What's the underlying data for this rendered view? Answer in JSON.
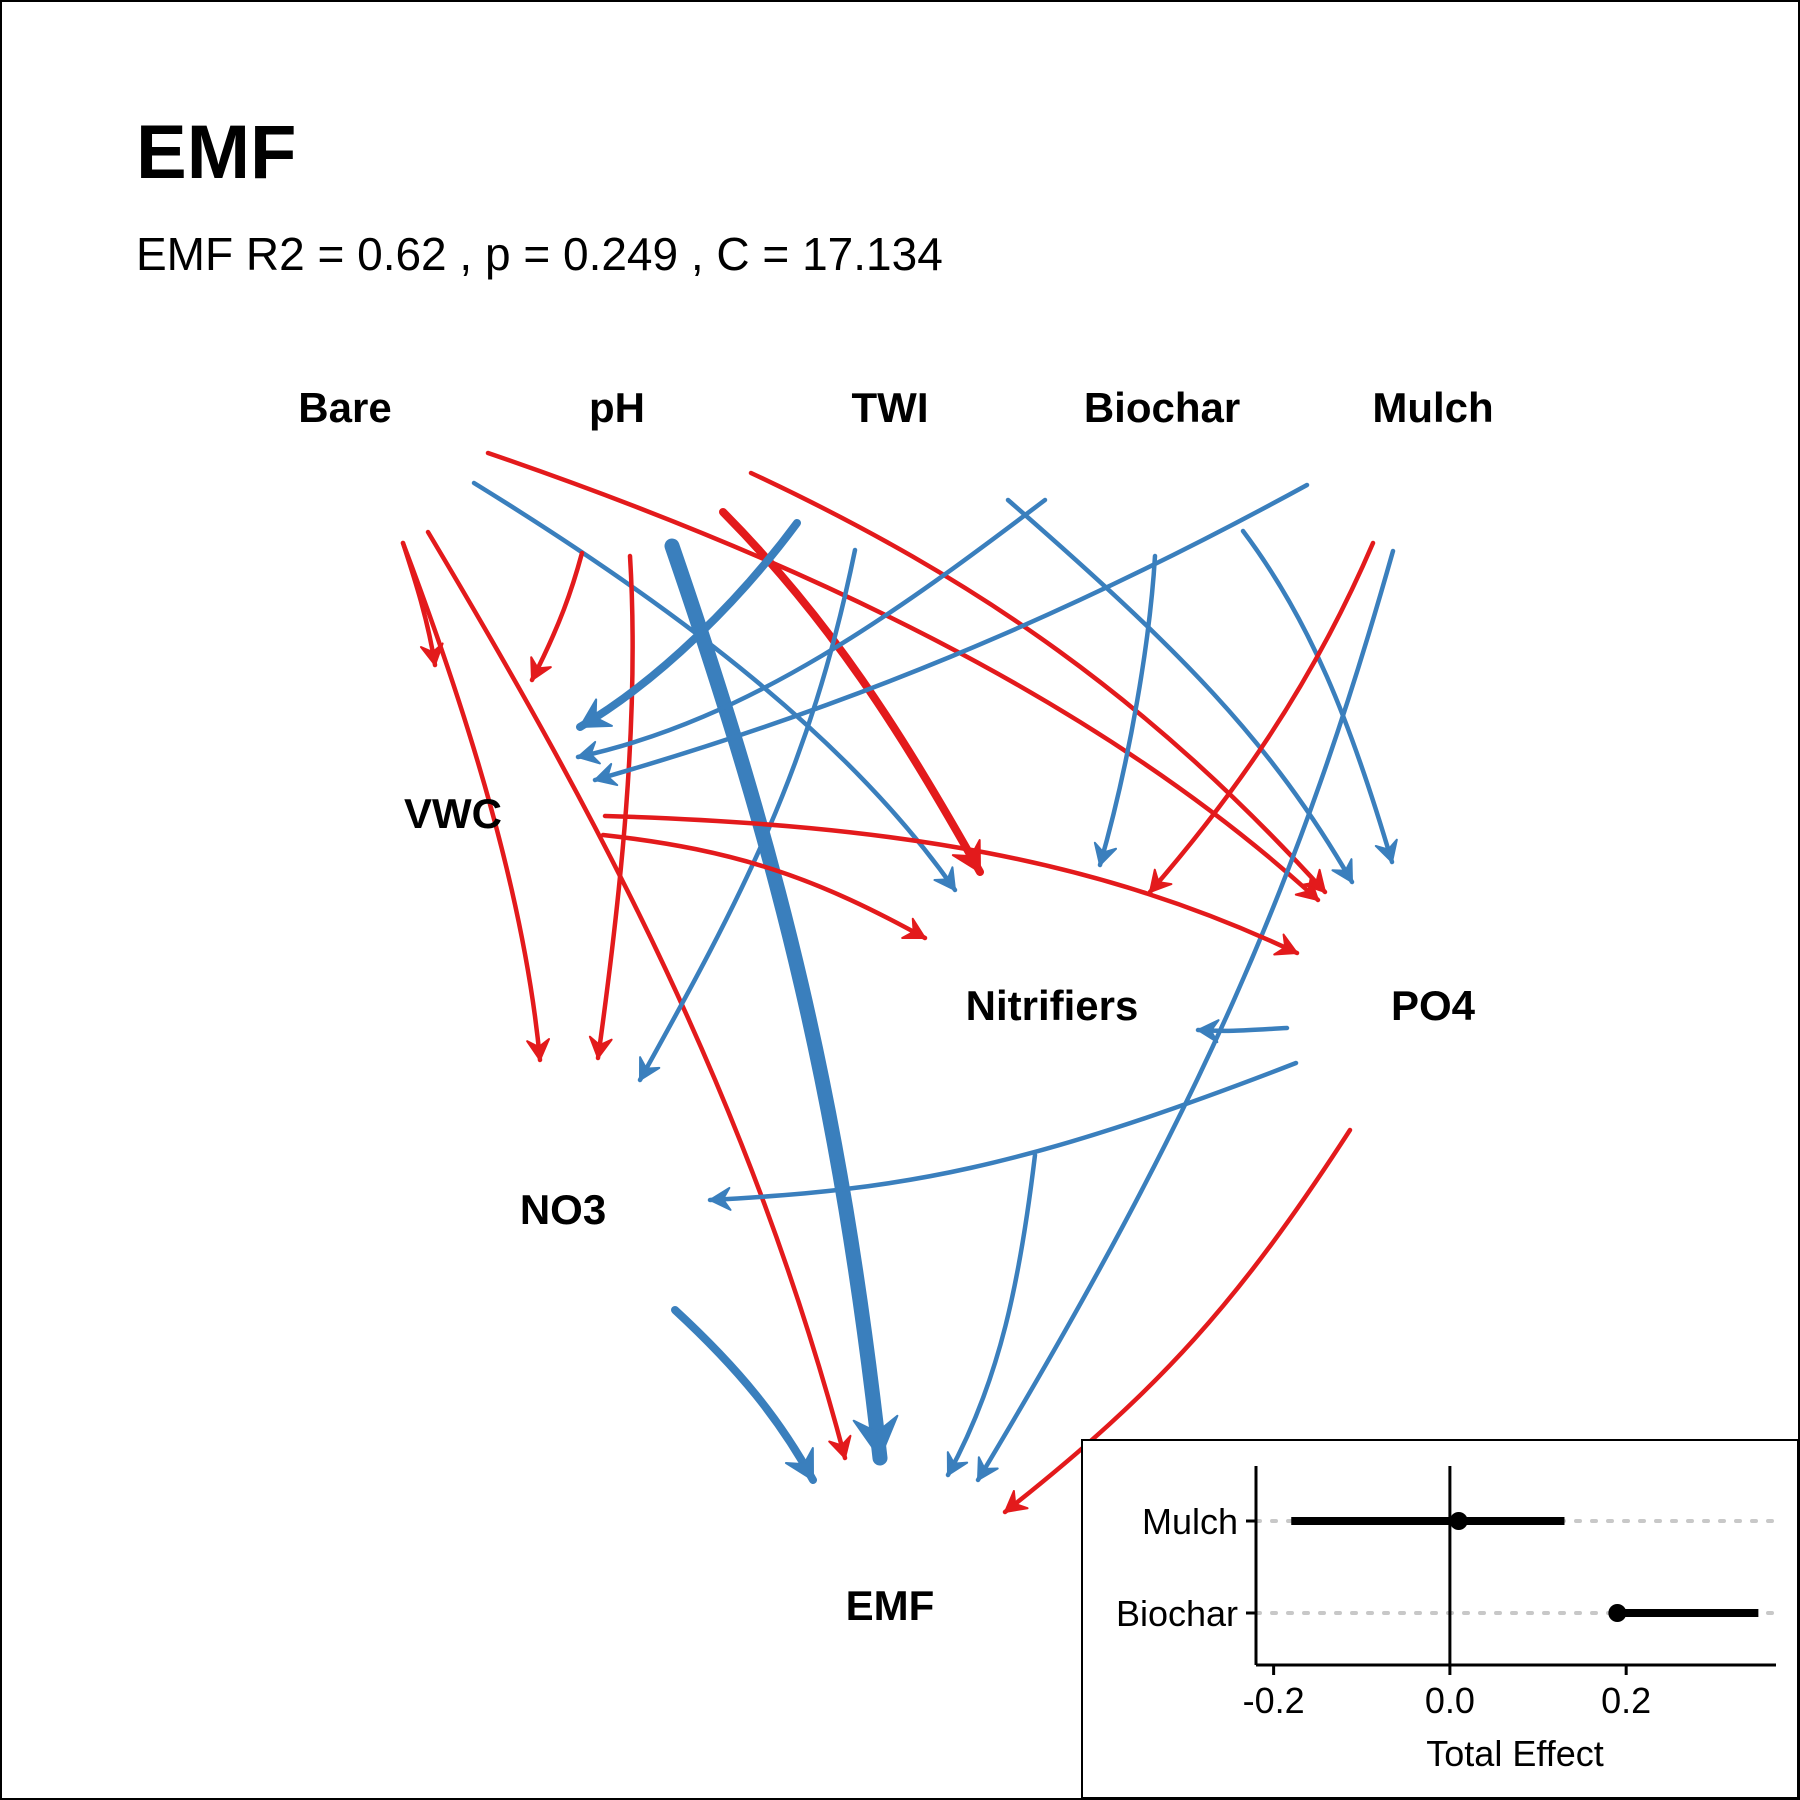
{
  "title": "EMF",
  "subtitle": "EMF R2 = 0.62 , p =  0.249 , C = 17.134",
  "colors": {
    "positive": "#3a7fbd",
    "negative": "#e31a1c",
    "text": "#000000",
    "grid": "#c8c8c8"
  },
  "nodes": {
    "bare": "Bare",
    "ph": "pH",
    "twi": "TWI",
    "biochar": "Biochar",
    "mulch": "Mulch",
    "vwc": "VWC",
    "nitrifiers": "Nitrifiers",
    "po4": "PO4",
    "no3": "NO3",
    "emf": "EMF"
  },
  "edges": [
    {
      "from": "Bare",
      "to": "VWC",
      "sign": "negative",
      "strength": "weak"
    },
    {
      "from": "Bare",
      "to": "NO3",
      "sign": "negative",
      "strength": "weak"
    },
    {
      "from": "Bare",
      "to": "EMF",
      "sign": "negative",
      "strength": "weak"
    },
    {
      "from": "Bare",
      "to": "Nitrifiers",
      "sign": "positive",
      "strength": "weak"
    },
    {
      "from": "Bare",
      "to": "PO4",
      "sign": "negative",
      "strength": "weak"
    },
    {
      "from": "pH",
      "to": "VWC",
      "sign": "negative",
      "strength": "weak"
    },
    {
      "from": "pH",
      "to": "NO3",
      "sign": "negative",
      "strength": "weak"
    },
    {
      "from": "pH",
      "to": "EMF",
      "sign": "positive",
      "strength": "strong"
    },
    {
      "from": "pH",
      "to": "Nitrifiers",
      "sign": "negative",
      "strength": "medium"
    },
    {
      "from": "TWI",
      "to": "VWC",
      "sign": "positive",
      "strength": "medium"
    },
    {
      "from": "TWI",
      "to": "NO3",
      "sign": "positive",
      "strength": "weak"
    },
    {
      "from": "TWI",
      "to": "PO4",
      "sign": "negative",
      "strength": "weak"
    },
    {
      "from": "Biochar",
      "to": "VWC",
      "sign": "positive",
      "strength": "weak"
    },
    {
      "from": "Biochar",
      "to": "Nitrifiers",
      "sign": "positive",
      "strength": "weak"
    },
    {
      "from": "Biochar",
      "to": "PO4",
      "sign": "positive",
      "strength": "weak"
    },
    {
      "from": "Mulch",
      "to": "VWC",
      "sign": "positive",
      "strength": "weak"
    },
    {
      "from": "Mulch",
      "to": "PO4",
      "sign": "positive",
      "strength": "weak"
    },
    {
      "from": "Mulch",
      "to": "Nitrifiers",
      "sign": "negative",
      "strength": "weak"
    },
    {
      "from": "Mulch",
      "to": "EMF",
      "sign": "positive",
      "strength": "weak"
    },
    {
      "from": "VWC",
      "to": "Nitrifiers",
      "sign": "negative",
      "strength": "weak"
    },
    {
      "from": "VWC",
      "to": "PO4",
      "sign": "negative",
      "strength": "weak"
    },
    {
      "from": "PO4",
      "to": "Nitrifiers",
      "sign": "positive",
      "strength": "weak"
    },
    {
      "from": "PO4",
      "to": "NO3",
      "sign": "positive",
      "strength": "weak"
    },
    {
      "from": "PO4",
      "to": "EMF",
      "sign": "negative",
      "strength": "weak"
    },
    {
      "from": "Nitrifiers",
      "to": "EMF",
      "sign": "positive",
      "strength": "weak"
    },
    {
      "from": "NO3",
      "to": "EMF",
      "sign": "positive",
      "strength": "medium"
    }
  ],
  "chart_data": {
    "type": "scatter",
    "categories": [
      "Mulch",
      "Biochar"
    ],
    "estimates": [
      0.01,
      0.19
    ],
    "lower": [
      -0.18,
      0.19
    ],
    "upper": [
      0.13,
      0.35
    ],
    "xlabel": "Total Effect",
    "xticks": [
      -0.2,
      0.0,
      0.2
    ],
    "xtick_labels": [
      "-0.2",
      "0.0",
      "0.2"
    ],
    "xlim": [
      -0.22,
      0.37
    ],
    "zero_line": 0.0
  }
}
